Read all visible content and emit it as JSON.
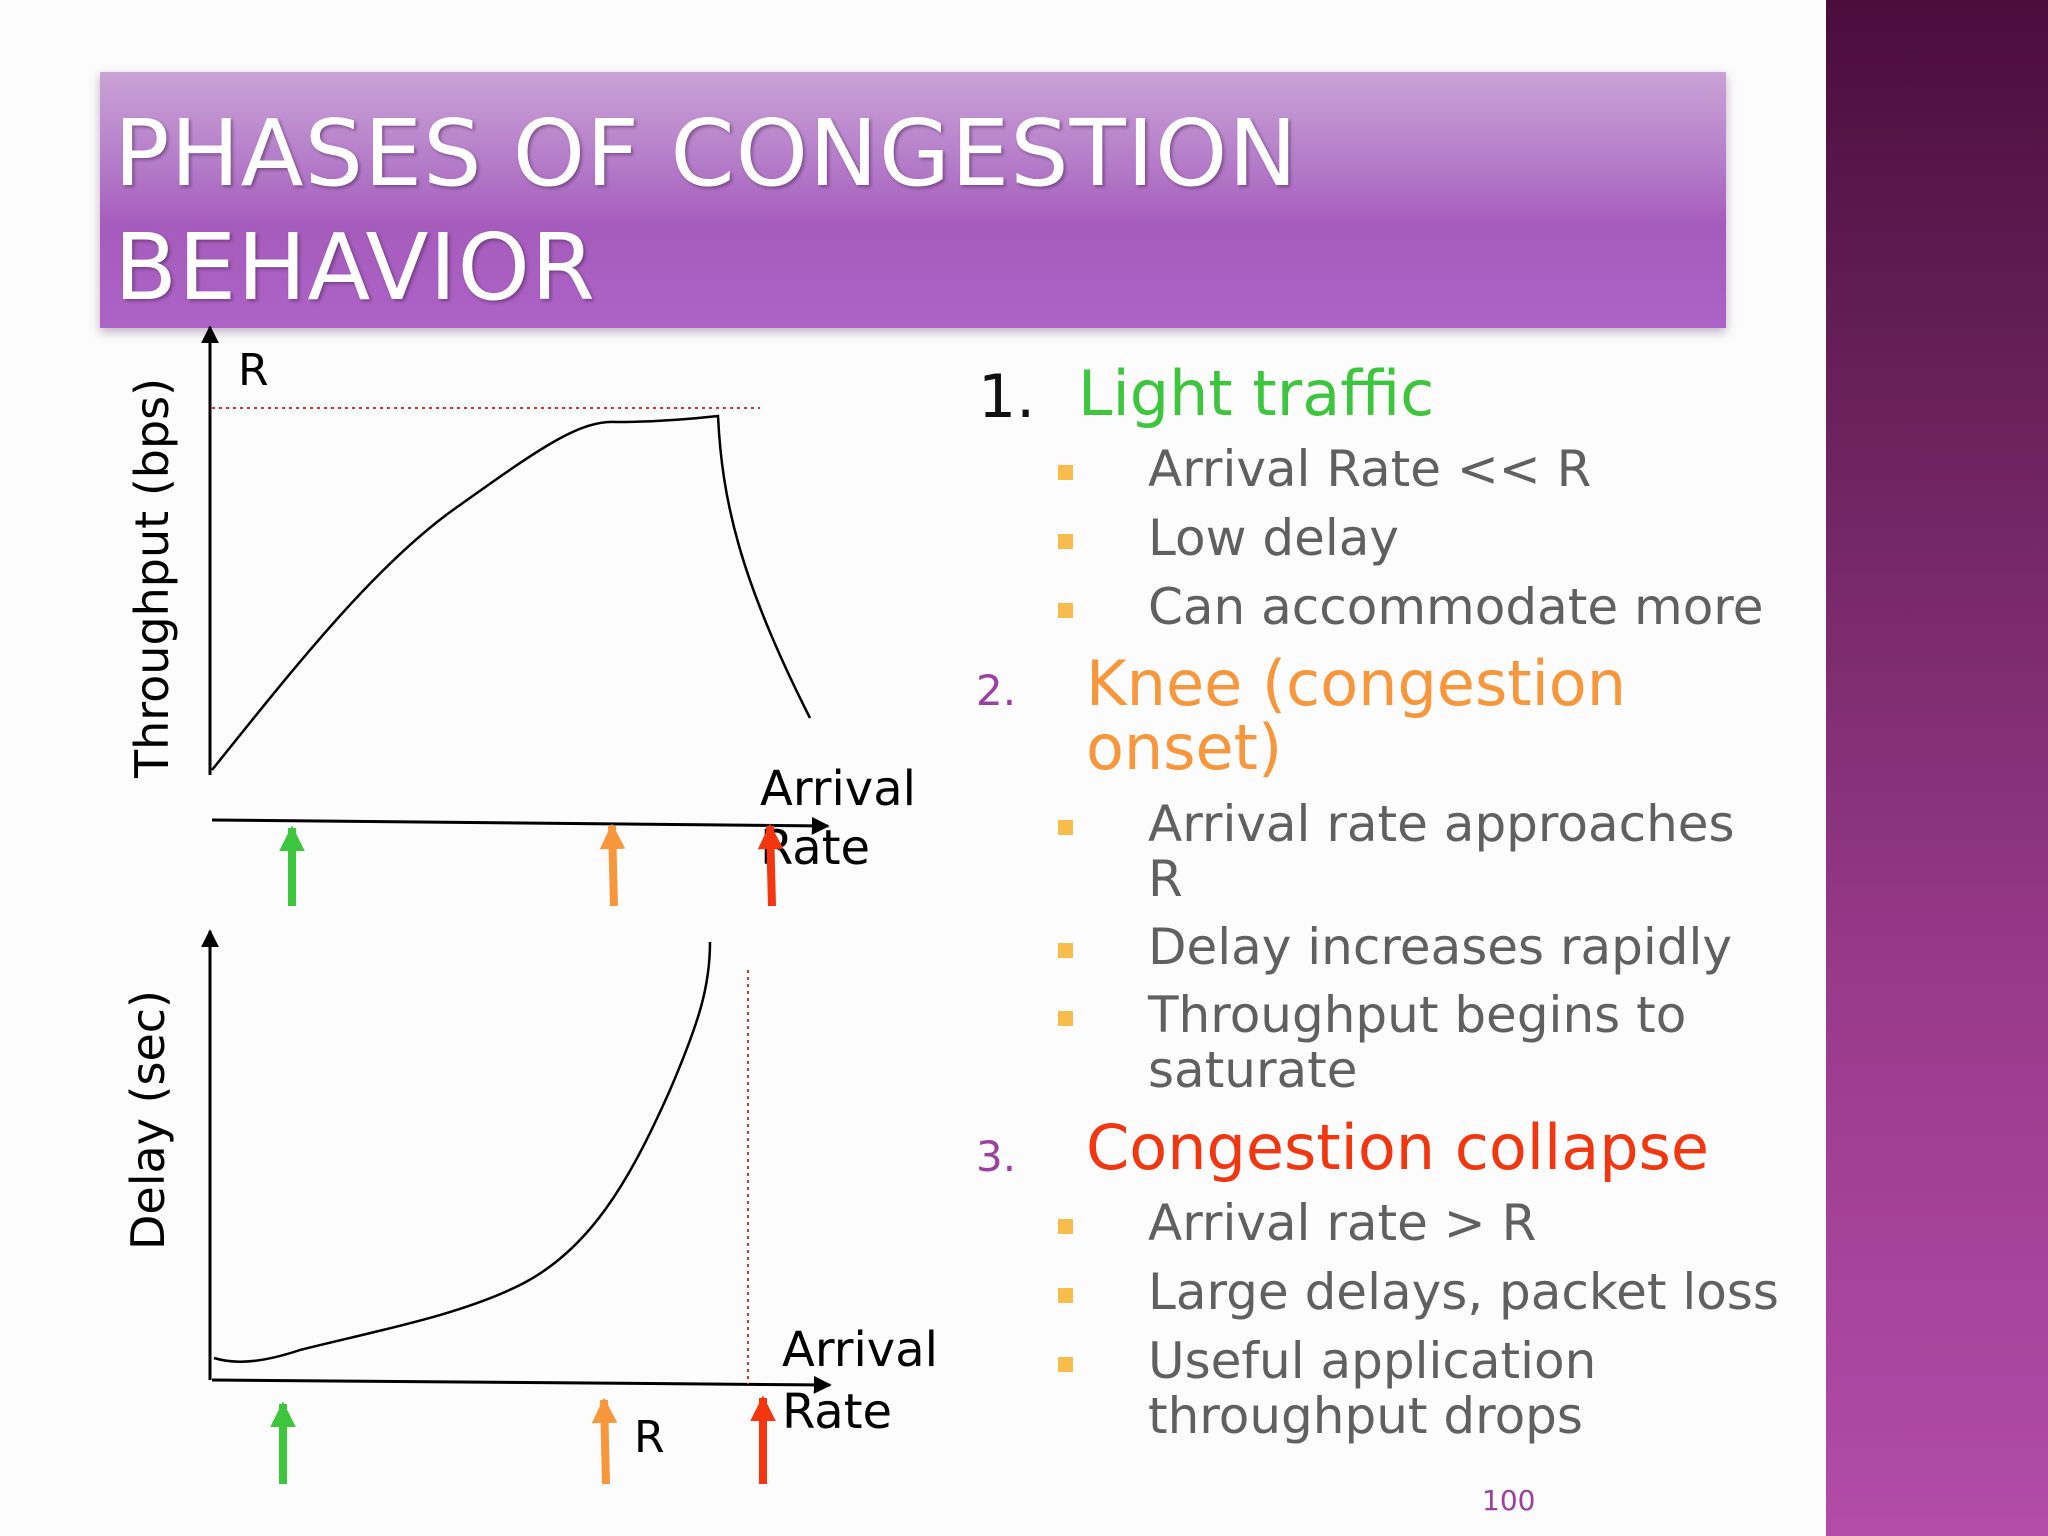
{
  "title": {
    "line1": "PHASES OF CONGESTION",
    "line2": "BEHAVIOR"
  },
  "top_graph": {
    "y_axis_label": "Throughput (bps)",
    "r_label": "R",
    "x_axis_label_1": "Arrival",
    "x_axis_label_2": "Rate"
  },
  "bottom_graph": {
    "y_axis_label": "Delay (sec)",
    "r_label": "R",
    "x_axis_label_1": "Arrival",
    "x_axis_label_2": "Rate"
  },
  "colors": {
    "light": "#3dc63d",
    "knee": "#f7963b",
    "collapse": "#f2360f",
    "bullet": "#f6bd4c",
    "number_purple": "#9b3fa0",
    "body_text": "#606060"
  },
  "phases": [
    {
      "number": "1.",
      "heading": "Light traffic",
      "heading_lines": [
        "Light traffic"
      ],
      "items": [
        [
          "Arrival Rate << R"
        ],
        [
          "Low delay"
        ],
        [
          "Can accommodate more"
        ]
      ]
    },
    {
      "number": "2.",
      "heading": "Knee (congestion onset)",
      "heading_lines": [
        "Knee (congestion",
        "onset)"
      ],
      "items": [
        [
          "Arrival rate approaches",
          "R"
        ],
        [
          "Delay increases rapidly"
        ],
        [
          "Throughput begins to",
          "saturate"
        ]
      ]
    },
    {
      "number": "3.",
      "heading": "Congestion collapse",
      "heading_lines": [
        "Congestion collapse"
      ],
      "items": [
        [
          "Arrival rate > R"
        ],
        [
          "Large delays, packet loss"
        ],
        [
          "Useful application",
          "throughput drops"
        ]
      ]
    }
  ],
  "page_number": "100"
}
